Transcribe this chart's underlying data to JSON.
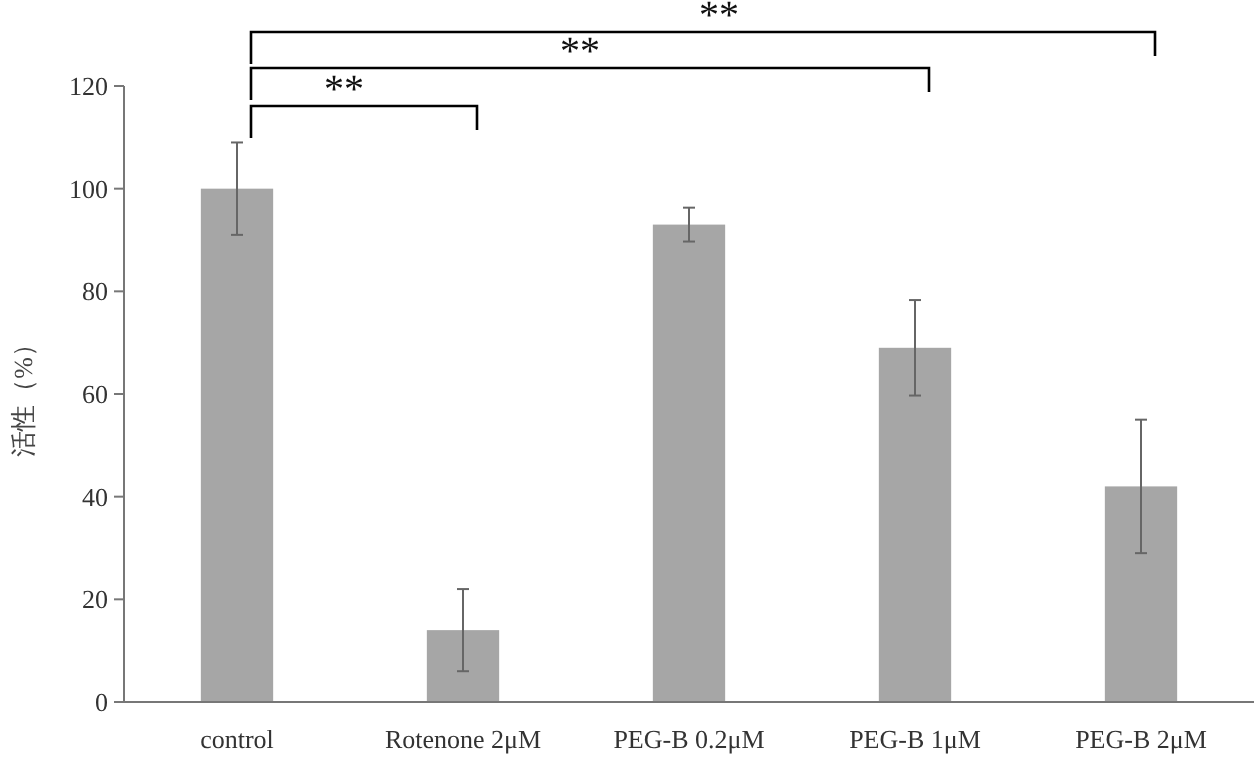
{
  "chart_data": {
    "type": "bar",
    "categories": [
      "control",
      "Rotenone 2μM",
      "PEG-B 0.2μM",
      "PEG-B 1μM",
      "PEG-B 2μM"
    ],
    "values": [
      100,
      14,
      93,
      69,
      42
    ],
    "errors": [
      9,
      8,
      3.3,
      9.3,
      13
    ],
    "color": "#a6a6a6",
    "ylabel": "活性（%）",
    "ylim": [
      0,
      120
    ],
    "yticks": [
      0,
      20,
      40,
      60,
      80,
      100,
      120
    ],
    "annotations": [
      "**",
      "**",
      "**"
    ],
    "grid": false
  }
}
